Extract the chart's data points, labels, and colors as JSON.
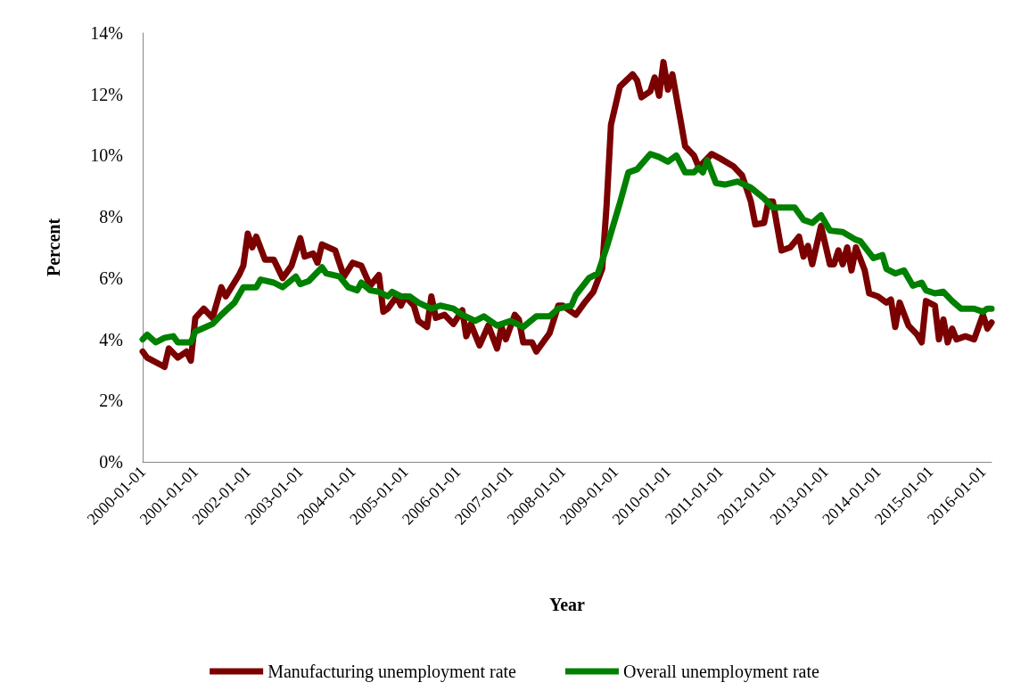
{
  "chart_data": {
    "type": "line",
    "xlabel": "Year",
    "ylabel": "Percent",
    "xlim": [
      "2000-01",
      "2016-03"
    ],
    "xticks": [
      "2000-01-01",
      "2001-01-01",
      "2002-01-01",
      "2003-01-01",
      "2004-01-01",
      "2005-01-01",
      "2006-01-01",
      "2007-01-01",
      "2008-01-01",
      "2009-01-01",
      "2010-01-01",
      "2011-01-01",
      "2012-01-01",
      "2013-01-01",
      "2014-01-01",
      "2015-01-01",
      "2016-01-01"
    ],
    "ylim": [
      0,
      14
    ],
    "yticks": [
      {
        "value": 0,
        "label": "0%"
      },
      {
        "value": 2,
        "label": "2%"
      },
      {
        "value": 4,
        "label": "4%"
      },
      {
        "value": 6,
        "label": "6%"
      },
      {
        "value": 8,
        "label": "8%"
      },
      {
        "value": 10,
        "label": "10%"
      },
      {
        "value": 12,
        "label": "12%"
      },
      {
        "value": 14,
        "label": "14%"
      }
    ],
    "grid": false,
    "legend": "bottom",
    "marker": "none",
    "line_style": "solid",
    "series": [
      {
        "name": "Manufacturing unemployment rate",
        "color": "#7b0000",
        "x": [
          "2000-01",
          "2000-02",
          "2000-06",
          "2000-07",
          "2000-09",
          "2000-11",
          "2000-12",
          "2001-01",
          "2001-03",
          "2001-05",
          "2001-07",
          "2001-08",
          "2001-11",
          "2001-12",
          "2002-01",
          "2002-02",
          "2002-03",
          "2002-05",
          "2002-07",
          "2002-09",
          "2002-11",
          "2003-01",
          "2003-02",
          "2003-04",
          "2003-05",
          "2003-06",
          "2003-09",
          "2003-11",
          "2004-01",
          "2004-03",
          "2004-05",
          "2004-07",
          "2004-08",
          "2004-09",
          "2004-11",
          "2004-12",
          "2005-01",
          "2005-03",
          "2005-04",
          "2005-06",
          "2005-07",
          "2005-08",
          "2005-10",
          "2005-12",
          "2006-02",
          "2006-03",
          "2006-04",
          "2006-06",
          "2006-08",
          "2006-10",
          "2006-11",
          "2006-12",
          "2007-02",
          "2007-03",
          "2007-04",
          "2007-06",
          "2007-07",
          "2007-10",
          "2007-12",
          "2008-01",
          "2008-04",
          "2008-06",
          "2008-08",
          "2008-10",
          "2008-11",
          "2008-12",
          "2009-02",
          "2009-05",
          "2009-06",
          "2009-07",
          "2009-09",
          "2009-10",
          "2009-11",
          "2009-12",
          "2010-01",
          "2010-02",
          "2010-04",
          "2010-05",
          "2010-07",
          "2010-08",
          "2010-09",
          "2010-11",
          "2011-01",
          "2011-04",
          "2011-06",
          "2011-08",
          "2011-09",
          "2011-11",
          "2011-12",
          "2012-01",
          "2012-03",
          "2012-05",
          "2012-07",
          "2012-08",
          "2012-09",
          "2012-10",
          "2012-12",
          "2013-02",
          "2013-03",
          "2013-04",
          "2013-05",
          "2013-06",
          "2013-07",
          "2013-08",
          "2013-10",
          "2013-11",
          "2014-01",
          "2014-03",
          "2014-04",
          "2014-05",
          "2014-06",
          "2014-08",
          "2014-10",
          "2014-11",
          "2014-12",
          "2015-02",
          "2015-03",
          "2015-04",
          "2015-05",
          "2015-06",
          "2015-07",
          "2015-09",
          "2015-11",
          "2016-01",
          "2016-02",
          "2016-03"
        ],
        "values": [
          3.6,
          3.4,
          3.1,
          3.7,
          3.4,
          3.6,
          3.3,
          4.7,
          5.0,
          4.7,
          5.7,
          5.4,
          6.1,
          6.4,
          7.45,
          7.0,
          7.35,
          6.6,
          6.6,
          6.0,
          6.4,
          7.3,
          6.7,
          6.8,
          6.5,
          7.1,
          6.9,
          6.05,
          6.5,
          6.4,
          5.75,
          6.1,
          4.9,
          5.0,
          5.4,
          5.1,
          5.4,
          5.1,
          4.6,
          4.4,
          5.4,
          4.7,
          4.8,
          4.5,
          4.95,
          4.1,
          4.5,
          3.8,
          4.45,
          3.7,
          4.4,
          4.0,
          4.8,
          4.65,
          3.9,
          3.9,
          3.6,
          4.2,
          5.1,
          5.1,
          4.8,
          5.2,
          5.55,
          6.3,
          8.4,
          11.0,
          12.25,
          12.65,
          12.45,
          11.9,
          12.1,
          12.55,
          11.95,
          13.05,
          12.15,
          12.65,
          11.1,
          10.3,
          10.0,
          9.65,
          9.75,
          10.05,
          9.9,
          9.65,
          9.35,
          8.5,
          7.75,
          7.8,
          8.5,
          8.5,
          6.9,
          7.0,
          7.35,
          6.7,
          7.05,
          6.45,
          7.7,
          6.45,
          6.45,
          6.9,
          6.45,
          7.0,
          6.25,
          7.0,
          6.25,
          5.5,
          5.4,
          5.2,
          5.3,
          4.4,
          5.2,
          4.45,
          4.15,
          3.9,
          5.25,
          5.1,
          4.0,
          4.65,
          3.9,
          4.35,
          4.0,
          4.1,
          4.0,
          4.8,
          4.35,
          4.55
        ]
      },
      {
        "name": "Overall unemployment rate",
        "color": "#008000",
        "x": [
          "2000-01",
          "2000-02",
          "2000-04",
          "2000-06",
          "2000-08",
          "2000-09",
          "2000-12",
          "2001-01",
          "2001-05",
          "2001-07",
          "2001-10",
          "2001-12",
          "2002-03",
          "2002-04",
          "2002-07",
          "2002-09",
          "2002-12",
          "2003-01",
          "2003-03",
          "2003-06",
          "2003-07",
          "2003-10",
          "2003-12",
          "2004-02",
          "2004-03",
          "2004-05",
          "2004-07",
          "2004-09",
          "2004-10",
          "2004-12",
          "2005-02",
          "2005-04",
          "2005-07",
          "2005-09",
          "2005-12",
          "2006-02",
          "2006-05",
          "2006-07",
          "2006-10",
          "2007-01",
          "2007-04",
          "2007-07",
          "2007-10",
          "2007-12",
          "2008-03",
          "2008-04",
          "2008-07",
          "2008-09",
          "2008-11",
          "2009-02",
          "2009-04",
          "2009-06",
          "2009-09",
          "2009-11",
          "2010-01",
          "2010-03",
          "2010-05",
          "2010-07",
          "2010-08",
          "2010-09",
          "2010-10",
          "2010-12",
          "2011-02",
          "2011-05",
          "2011-08",
          "2011-11",
          "2012-01",
          "2012-06",
          "2012-08",
          "2012-10",
          "2012-12",
          "2013-02",
          "2013-05",
          "2013-08",
          "2013-09",
          "2013-12",
          "2014-02",
          "2014-03",
          "2014-05",
          "2014-07",
          "2014-09",
          "2014-11",
          "2014-12",
          "2015-02",
          "2015-04",
          "2015-06",
          "2015-08",
          "2015-11",
          "2016-01",
          "2016-02",
          "2016-03"
        ],
        "values": [
          4.0,
          4.15,
          3.9,
          4.05,
          4.1,
          3.9,
          3.9,
          4.25,
          4.5,
          4.8,
          5.2,
          5.7,
          5.7,
          5.95,
          5.85,
          5.7,
          6.05,
          5.8,
          5.9,
          6.35,
          6.15,
          6.05,
          5.7,
          5.6,
          5.85,
          5.6,
          5.55,
          5.4,
          5.55,
          5.4,
          5.4,
          5.2,
          5.0,
          5.1,
          5.0,
          4.8,
          4.6,
          4.75,
          4.45,
          4.6,
          4.4,
          4.75,
          4.75,
          5.0,
          5.1,
          5.45,
          6.0,
          6.15,
          7.0,
          8.45,
          9.45,
          9.55,
          10.05,
          9.95,
          9.8,
          10.0,
          9.45,
          9.45,
          9.6,
          9.45,
          9.85,
          9.1,
          9.05,
          9.15,
          8.95,
          8.6,
          8.3,
          8.3,
          7.9,
          7.8,
          8.05,
          7.55,
          7.5,
          7.25,
          7.2,
          6.65,
          6.75,
          6.3,
          6.15,
          6.25,
          5.75,
          5.85,
          5.6,
          5.5,
          5.55,
          5.25,
          5.0,
          5.0,
          4.9,
          5.0,
          5.0
        ]
      }
    ]
  }
}
